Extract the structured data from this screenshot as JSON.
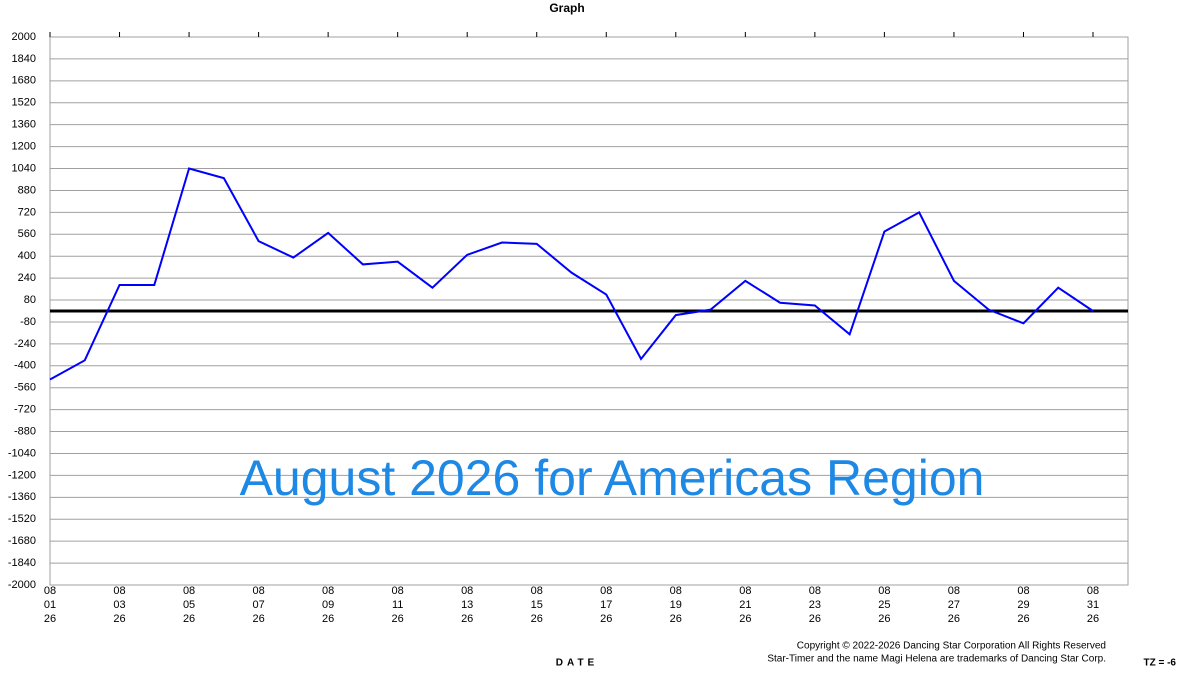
{
  "chart_data": {
    "type": "line",
    "title": "Graph",
    "x_label": "DATE",
    "categories": [
      [
        "08",
        "01",
        "26"
      ],
      null,
      [
        "08",
        "03",
        "26"
      ],
      null,
      [
        "08",
        "05",
        "26"
      ],
      null,
      [
        "08",
        "07",
        "26"
      ],
      null,
      [
        "08",
        "09",
        "26"
      ],
      null,
      [
        "08",
        "11",
        "26"
      ],
      null,
      [
        "08",
        "13",
        "26"
      ],
      null,
      [
        "08",
        "15",
        "26"
      ],
      null,
      [
        "08",
        "17",
        "26"
      ],
      null,
      [
        "08",
        "19",
        "26"
      ],
      null,
      [
        "08",
        "21",
        "26"
      ],
      null,
      [
        "08",
        "23",
        "26"
      ],
      null,
      [
        "08",
        "25",
        "26"
      ],
      null,
      [
        "08",
        "27",
        "26"
      ],
      null,
      [
        "08",
        "29",
        "26"
      ],
      null,
      [
        "08",
        "31",
        "26"
      ]
    ],
    "values": [
      -500,
      -360,
      190,
      190,
      1040,
      970,
      510,
      390,
      570,
      340,
      360,
      170,
      410,
      500,
      490,
      280,
      120,
      -350,
      -30,
      10,
      220,
      60,
      40,
      -170,
      580,
      720,
      220,
      10,
      -90,
      170,
      0
    ],
    "color": "#0000ff",
    "reference_line": 0,
    "ylim": [
      -2000,
      2000
    ],
    "yticks": [
      2000,
      1840,
      1680,
      1520,
      1360,
      1200,
      1040,
      880,
      720,
      560,
      400,
      240,
      80,
      -80,
      -240,
      -400,
      -560,
      -720,
      -880,
      -1040,
      -1200,
      -1360,
      -1520,
      -1680,
      -1840,
      -2000
    ],
    "grid": true,
    "overlay_text": "August 2026 for Americas Region",
    "copyright": [
      "Copyright © 2022-2026 Dancing Star Corporation All Rights Reserved",
      "Star-Timer and the name Magi Helena are trademarks of Dancing Star Corp."
    ],
    "timezone": "TZ = -6"
  }
}
